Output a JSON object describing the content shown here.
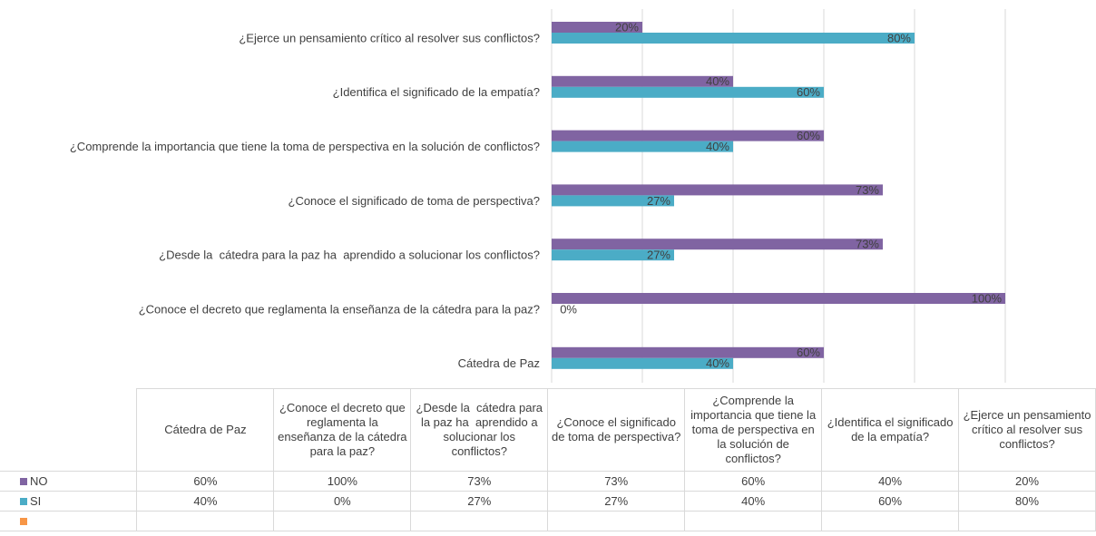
{
  "chart_data": {
    "type": "bar",
    "orientation": "horizontal",
    "categories": [
      "Cátedra de Paz",
      "¿Conoce el decreto que reglamenta la enseñanza de la cátedra para la paz?",
      "¿Desde la  cátedra para la paz ha  aprendido a solucionar los conflictos?",
      "¿Conoce el significado de toma de perspectiva?",
      "¿Comprende la importancia que tiene la toma de perspectiva en la solución de conflictos?",
      "¿Identifica el significado de la empatía?",
      "¿Ejerce un pensamiento crítico al resolver sus conflictos?"
    ],
    "series": [
      {
        "name": "NO",
        "color": "#8064a2",
        "values": [
          60,
          100,
          73,
          73,
          60,
          40,
          20
        ],
        "value_labels": [
          "60%",
          "100%",
          "73%",
          "73%",
          "60%",
          "40%",
          "20%"
        ]
      },
      {
        "name": "SI",
        "color": "#4bacc6",
        "values": [
          40,
          0,
          27,
          27,
          40,
          60,
          80
        ],
        "value_labels": [
          "40%",
          "0%",
          "27%",
          "27%",
          "40%",
          "60%",
          "80%"
        ]
      }
    ],
    "xlim": [
      0,
      100
    ],
    "xticks": [
      0,
      20,
      40,
      60,
      80,
      100
    ],
    "grid": true
  }
}
